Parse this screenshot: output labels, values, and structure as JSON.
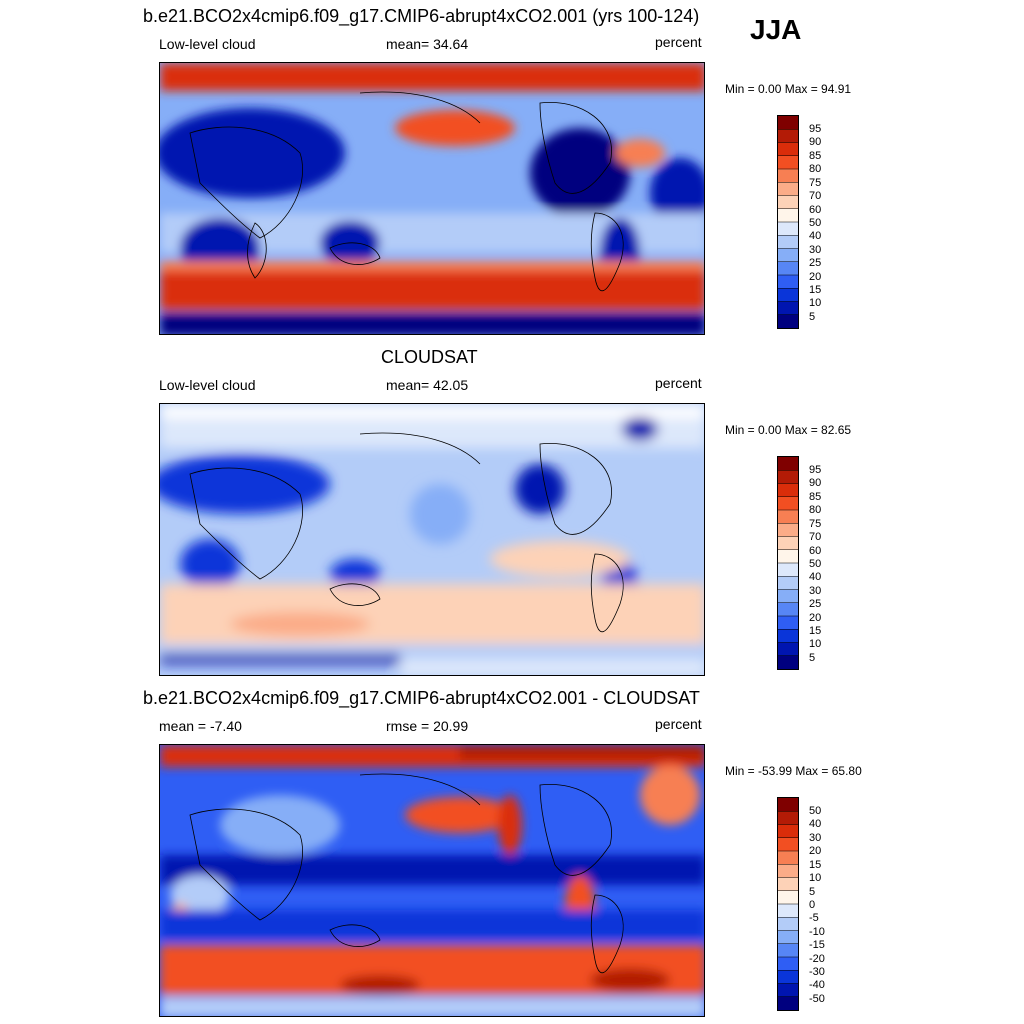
{
  "season": "JJA",
  "colors": {
    "scale": [
      "#00007f",
      "#0015b0",
      "#0a35d9",
      "#2f5ef4",
      "#5786f5",
      "#86aef7",
      "#b3ccf8",
      "#dde8fb",
      "#fff5ea",
      "#fdd2b7",
      "#fbac88",
      "#f77f53",
      "#f24f22",
      "#da2d0a",
      "#b31b06",
      "#7f0000"
    ],
    "diff_scale": [
      "#00007f",
      "#0015b0",
      "#0a35d9",
      "#2f5ef4",
      "#5786f5",
      "#86aef7",
      "#b3ccf8",
      "#dde8fb",
      "#fff5ea",
      "#fdd2b7",
      "#fbac88",
      "#f77f53",
      "#f24f22",
      "#da2d0a",
      "#b31b06",
      "#7f0000"
    ]
  },
  "panels": [
    {
      "title": "b.e21.BCO2x4cmip6.f09_g17.CMIP6-abrupt4xCO2.001 (yrs 100-124)",
      "left_label": "Low-level cloud",
      "center_label": "mean=  34.64",
      "right_label": "percent",
      "minmax": "Min =   0.00 Max =  94.91",
      "colorbar_labels": [
        "95",
        "90",
        "85",
        "80",
        "75",
        "70",
        "60",
        "50",
        "40",
        "30",
        "25",
        "20",
        "15",
        "10",
        "5"
      ]
    },
    {
      "title": "CLOUDSAT",
      "left_label": "Low-level cloud",
      "center_label": "mean=  42.05",
      "right_label": "percent",
      "minmax": "Min =   0.00 Max =  82.65",
      "colorbar_labels": [
        "95",
        "90",
        "85",
        "80",
        "75",
        "70",
        "60",
        "50",
        "40",
        "30",
        "25",
        "20",
        "15",
        "10",
        "5"
      ]
    },
    {
      "title": "b.e21.BCO2x4cmip6.f09_g17.CMIP6-abrupt4xCO2.001 - CLOUDSAT",
      "left_label": "mean =  -7.40",
      "center_label": "rmse =  20.99",
      "right_label": "percent",
      "minmax": "Min = -53.99 Max =  65.80",
      "colorbar_labels": [
        "50",
        "40",
        "30",
        "20",
        "15",
        "10",
        "5",
        "0",
        "-5",
        "-10",
        "-15",
        "-20",
        "-30",
        "-40",
        "-50"
      ]
    }
  ]
}
